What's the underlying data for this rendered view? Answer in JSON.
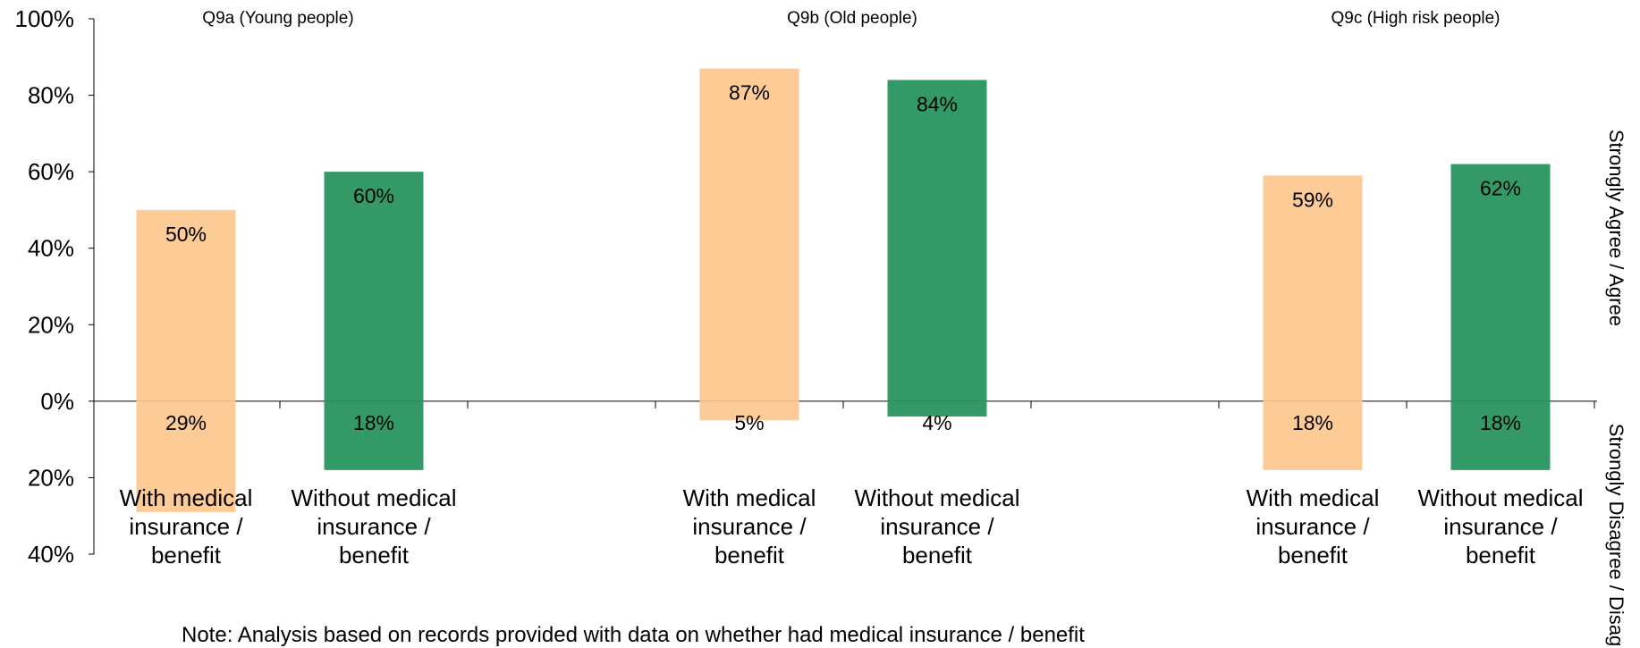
{
  "chart_data": {
    "type": "bar",
    "ylim": [
      -40,
      100
    ],
    "y_ticks": [
      {
        "value": 100,
        "label": "100%"
      },
      {
        "value": 80,
        "label": "80%"
      },
      {
        "value": 60,
        "label": "60%"
      },
      {
        "value": 40,
        "label": "40%"
      },
      {
        "value": 20,
        "label": "20%"
      },
      {
        "value": 0,
        "label": "0%"
      },
      {
        "value": -20,
        "label": "20%"
      },
      {
        "value": -40,
        "label": "40%"
      }
    ],
    "right_labels": {
      "upper": "Strongly Agree / Agree",
      "lower": "Strongly Disagree / Disagree"
    },
    "series_colors": {
      "with": "#fdcb96",
      "without": "#339966"
    },
    "groups": [
      {
        "title": "Q9a (Young people)",
        "bars": [
          {
            "category": "With medical insurance / benefit",
            "agree": 50,
            "disagree": 29,
            "agree_label": "50%",
            "disagree_label": "29%",
            "series": "with"
          },
          {
            "category": "Without medical insurance / benefit",
            "agree": 60,
            "disagree": 18,
            "agree_label": "60%",
            "disagree_label": "18%",
            "series": "without"
          }
        ]
      },
      {
        "title": "Q9b (Old people)",
        "bars": [
          {
            "category": "With medical insurance / benefit",
            "agree": 87,
            "disagree": 5,
            "agree_label": "87%",
            "disagree_label": "5%",
            "series": "with"
          },
          {
            "category": "Without medical insurance / benefit",
            "agree": 84,
            "disagree": 4,
            "agree_label": "84%",
            "disagree_label": "4%",
            "series": "without"
          }
        ]
      },
      {
        "title": "Q9c (High risk people)",
        "bars": [
          {
            "category": "With medical insurance / benefit",
            "agree": 59,
            "disagree": 18,
            "agree_label": "59%",
            "disagree_label": "18%",
            "series": "with"
          },
          {
            "category": "Without medical insurance / benefit",
            "agree": 62,
            "disagree": 18,
            "agree_label": "62%",
            "disagree_label": "18%",
            "series": "without"
          }
        ]
      }
    ],
    "category_label_lines": {
      "With medical insurance / benefit": [
        "With medical",
        "insurance /",
        "benefit"
      ],
      "Without medical insurance / benefit": [
        "Without medical",
        "insurance /",
        "benefit"
      ]
    }
  },
  "note": "Note: Analysis based on records provided with data on whether had medical insurance / benefit"
}
